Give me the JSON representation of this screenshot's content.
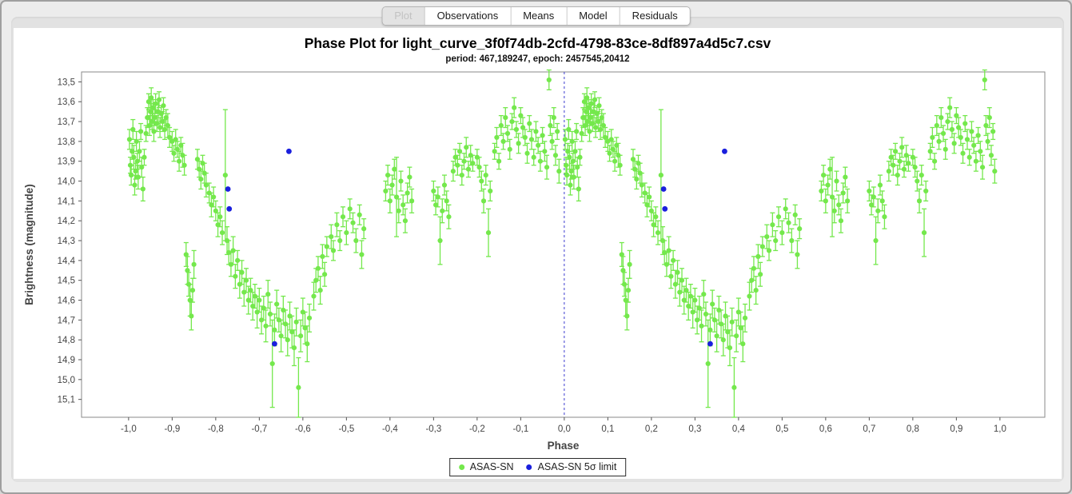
{
  "window": {
    "tabs": [
      {
        "label": "Plot",
        "state": "selected"
      },
      {
        "label": "Observations",
        "state": "normal"
      },
      {
        "label": "Means",
        "state": "normal"
      },
      {
        "label": "Model",
        "state": "normal"
      },
      {
        "label": "Residuals",
        "state": "normal"
      }
    ]
  },
  "chart_data": {
    "type": "scatter",
    "title": "Phase Plot for light_curve_3f0f74db-2cfd-4798-83ce-8df897a4d5c7.csv",
    "subtitle": "period: 467,189247, epoch: 2457545,20412",
    "xlabel": "Phase",
    "ylabel": "Brightness (magnitude)",
    "xlim": [
      -1.108,
      1.103
    ],
    "ylim": [
      13.45,
      15.19
    ],
    "y_axis_inverted": true,
    "grid": false,
    "legend_position": "bottom",
    "zero_line": {
      "x": 0,
      "style": "dashed",
      "color": "#3b3bcf"
    },
    "phase_duplication_offset": -1,
    "x_tick_values": [
      -1.0,
      -0.9,
      -0.8,
      -0.7,
      -0.6,
      -0.5,
      -0.4,
      -0.3,
      -0.2,
      -0.1,
      0.0,
      0.1,
      0.2,
      0.3,
      0.4,
      0.5,
      0.6,
      0.7,
      0.8,
      0.9,
      1.0
    ],
    "x_tick_labels": [
      "-1,0",
      "-0,9",
      "-0,8",
      "-0,7",
      "-0,6",
      "-0,5",
      "-0,4",
      "-0,3",
      "-0,2",
      "-0,1",
      "0,0",
      "0,1",
      "0,2",
      "0,3",
      "0,4",
      "0,5",
      "0,6",
      "0,7",
      "0,8",
      "0,9",
      "1,0"
    ],
    "y_tick_values": [
      13.5,
      13.6,
      13.7,
      13.8,
      13.9,
      14.0,
      14.1,
      14.2,
      14.3,
      14.4,
      14.5,
      14.6,
      14.7,
      14.8,
      14.9,
      15.0,
      15.1
    ],
    "y_tick_labels": [
      "13,5",
      "13,6",
      "13,7",
      "13,8",
      "13,9",
      "14,0",
      "14,1",
      "14,2",
      "14,3",
      "14,4",
      "14,5",
      "14,6",
      "14,7",
      "14,8",
      "14,9",
      "15,0",
      "15,1"
    ],
    "series": [
      {
        "name": "ASAS-SN",
        "marker": "circle",
        "color": "#74e84c",
        "has_error_bars": true,
        "points_format": [
          "phase",
          "magnitude",
          "error"
        ],
        "points": [
          [
            0.002,
            13.79,
            0.05
          ],
          [
            0.004,
            13.92,
            0.04
          ],
          [
            0.006,
            13.97,
            0.05
          ],
          [
            0.008,
            13.85,
            0.04
          ],
          [
            0.01,
            13.74,
            0.05
          ],
          [
            0.012,
            13.88,
            0.06
          ],
          [
            0.014,
            14.02,
            0.05
          ],
          [
            0.016,
            13.95,
            0.04
          ],
          [
            0.018,
            13.8,
            0.05
          ],
          [
            0.02,
            13.9,
            0.04
          ],
          [
            0.022,
            13.98,
            0.06
          ],
          [
            0.025,
            13.85,
            0.05
          ],
          [
            0.028,
            13.75,
            0.04
          ],
          [
            0.03,
            13.93,
            0.05
          ],
          [
            0.033,
            14.04,
            0.06
          ],
          [
            0.036,
            13.88,
            0.04
          ],
          [
            0.04,
            13.76,
            0.04
          ],
          [
            0.043,
            13.68,
            0.05
          ],
          [
            0.046,
            13.6,
            0.04
          ],
          [
            0.048,
            13.72,
            0.05
          ],
          [
            0.05,
            13.65,
            0.04
          ],
          [
            0.052,
            13.58,
            0.05
          ],
          [
            0.054,
            13.7,
            0.04
          ],
          [
            0.056,
            13.63,
            0.04
          ],
          [
            0.058,
            13.75,
            0.05
          ],
          [
            0.06,
            13.68,
            0.04
          ],
          [
            0.062,
            13.61,
            0.05
          ],
          [
            0.065,
            13.71,
            0.04
          ],
          [
            0.068,
            13.65,
            0.06
          ],
          [
            0.07,
            13.59,
            0.04
          ],
          [
            0.072,
            13.73,
            0.05
          ],
          [
            0.075,
            13.66,
            0.04
          ],
          [
            0.078,
            13.7,
            0.05
          ],
          [
            0.08,
            13.62,
            0.04
          ],
          [
            0.083,
            13.74,
            0.05
          ],
          [
            0.086,
            13.68,
            0.04
          ],
          [
            0.09,
            13.72,
            0.06
          ],
          [
            0.094,
            13.78,
            0.05
          ],
          [
            0.1,
            13.8,
            0.05
          ],
          [
            0.104,
            13.86,
            0.04
          ],
          [
            0.108,
            13.79,
            0.05
          ],
          [
            0.112,
            13.84,
            0.04
          ],
          [
            0.116,
            13.9,
            0.05
          ],
          [
            0.12,
            13.82,
            0.04
          ],
          [
            0.124,
            13.87,
            0.06
          ],
          [
            0.128,
            13.92,
            0.05
          ],
          [
            0.132,
            14.37,
            0.06
          ],
          [
            0.135,
            14.45,
            0.07
          ],
          [
            0.138,
            14.52,
            0.06
          ],
          [
            0.141,
            14.6,
            0.08
          ],
          [
            0.144,
            14.68,
            0.07
          ],
          [
            0.147,
            14.55,
            0.06
          ],
          [
            0.15,
            14.42,
            0.07
          ],
          [
            0.158,
            13.89,
            0.05
          ],
          [
            0.162,
            13.94,
            0.04
          ],
          [
            0.166,
            13.99,
            0.05
          ],
          [
            0.17,
            13.91,
            0.04
          ],
          [
            0.174,
            13.96,
            0.05
          ],
          [
            0.178,
            14.02,
            0.06
          ],
          [
            0.185,
            14.06,
            0.05
          ],
          [
            0.19,
            14.12,
            0.06
          ],
          [
            0.195,
            14.08,
            0.05
          ],
          [
            0.2,
            14.15,
            0.05
          ],
          [
            0.205,
            14.22,
            0.06
          ],
          [
            0.21,
            14.18,
            0.05
          ],
          [
            0.215,
            14.26,
            0.06
          ],
          [
            0.222,
            13.97,
            0.33
          ],
          [
            0.226,
            14.3,
            0.07
          ],
          [
            0.23,
            14.36,
            0.06
          ],
          [
            0.235,
            14.42,
            0.06
          ],
          [
            0.24,
            14.35,
            0.07
          ],
          [
            0.245,
            14.48,
            0.06
          ],
          [
            0.25,
            14.4,
            0.05
          ],
          [
            0.255,
            14.52,
            0.07
          ],
          [
            0.26,
            14.46,
            0.06
          ],
          [
            0.265,
            14.56,
            0.07
          ],
          [
            0.27,
            14.5,
            0.06
          ],
          [
            0.275,
            14.6,
            0.07
          ],
          [
            0.28,
            14.55,
            0.06
          ],
          [
            0.285,
            14.63,
            0.07
          ],
          [
            0.29,
            14.58,
            0.06
          ],
          [
            0.295,
            14.66,
            0.08
          ],
          [
            0.3,
            14.6,
            0.06
          ],
          [
            0.305,
            14.7,
            0.07
          ],
          [
            0.31,
            14.64,
            0.06
          ],
          [
            0.315,
            14.73,
            0.08
          ],
          [
            0.32,
            14.57,
            0.07
          ],
          [
            0.325,
            14.67,
            0.06
          ],
          [
            0.33,
            14.92,
            0.22
          ],
          [
            0.335,
            14.75,
            0.08
          ],
          [
            0.34,
            14.62,
            0.07
          ],
          [
            0.345,
            14.7,
            0.06
          ],
          [
            0.35,
            14.78,
            0.08
          ],
          [
            0.355,
            14.65,
            0.07
          ],
          [
            0.36,
            14.72,
            0.07
          ],
          [
            0.365,
            14.8,
            0.08
          ],
          [
            0.37,
            14.68,
            0.07
          ],
          [
            0.375,
            14.76,
            0.08
          ],
          [
            0.38,
            14.84,
            0.09
          ],
          [
            0.385,
            14.71,
            0.07
          ],
          [
            0.39,
            15.04,
            0.15
          ],
          [
            0.395,
            14.78,
            0.08
          ],
          [
            0.4,
            14.66,
            0.07
          ],
          [
            0.405,
            14.74,
            0.08
          ],
          [
            0.41,
            14.82,
            0.09
          ],
          [
            0.415,
            14.69,
            0.07
          ],
          [
            0.425,
            14.58,
            0.07
          ],
          [
            0.43,
            14.5,
            0.06
          ],
          [
            0.435,
            14.44,
            0.06
          ],
          [
            0.44,
            14.55,
            0.07
          ],
          [
            0.445,
            14.38,
            0.06
          ],
          [
            0.45,
            14.47,
            0.06
          ],
          [
            0.455,
            14.33,
            0.05
          ],
          [
            0.465,
            14.28,
            0.06
          ],
          [
            0.47,
            14.35,
            0.05
          ],
          [
            0.478,
            14.22,
            0.06
          ],
          [
            0.485,
            14.3,
            0.05
          ],
          [
            0.492,
            14.18,
            0.05
          ],
          [
            0.5,
            14.26,
            0.06
          ],
          [
            0.508,
            14.14,
            0.05
          ],
          [
            0.515,
            14.21,
            0.05
          ],
          [
            0.522,
            14.3,
            0.06
          ],
          [
            0.53,
            14.17,
            0.05
          ],
          [
            0.535,
            14.37,
            0.07
          ],
          [
            0.54,
            14.24,
            0.05
          ],
          [
            0.59,
            14.05,
            0.05
          ],
          [
            0.595,
            13.97,
            0.05
          ],
          [
            0.6,
            14.1,
            0.06
          ],
          [
            0.605,
            14.02,
            0.05
          ],
          [
            0.61,
            13.94,
            0.05
          ],
          [
            0.615,
            14.08,
            0.2
          ],
          [
            0.62,
            14.15,
            0.06
          ],
          [
            0.625,
            14.0,
            0.05
          ],
          [
            0.63,
            14.12,
            0.05
          ],
          [
            0.635,
            14.2,
            0.06
          ],
          [
            0.64,
            14.06,
            0.05
          ],
          [
            0.645,
            13.98,
            0.05
          ],
          [
            0.65,
            14.1,
            0.06
          ],
          [
            0.7,
            14.05,
            0.05
          ],
          [
            0.705,
            14.12,
            0.05
          ],
          [
            0.71,
            14.08,
            0.05
          ],
          [
            0.715,
            14.3,
            0.12
          ],
          [
            0.72,
            14.15,
            0.06
          ],
          [
            0.725,
            14.02,
            0.05
          ],
          [
            0.73,
            14.1,
            0.05
          ],
          [
            0.735,
            14.18,
            0.06
          ],
          [
            0.745,
            13.95,
            0.05
          ],
          [
            0.75,
            13.88,
            0.04
          ],
          [
            0.755,
            13.92,
            0.05
          ],
          [
            0.76,
            13.85,
            0.04
          ],
          [
            0.765,
            13.97,
            0.05
          ],
          [
            0.77,
            13.9,
            0.04
          ],
          [
            0.775,
            13.83,
            0.05
          ],
          [
            0.78,
            13.94,
            0.04
          ],
          [
            0.785,
            13.87,
            0.05
          ],
          [
            0.79,
            13.91,
            0.04
          ],
          [
            0.8,
            13.88,
            0.04
          ],
          [
            0.805,
            13.93,
            0.05
          ],
          [
            0.81,
            14.0,
            0.05
          ],
          [
            0.815,
            14.1,
            0.06
          ],
          [
            0.82,
            13.97,
            0.05
          ],
          [
            0.826,
            14.26,
            0.12
          ],
          [
            0.83,
            14.05,
            0.05
          ],
          [
            0.84,
            13.85,
            0.04
          ],
          [
            0.845,
            13.78,
            0.05
          ],
          [
            0.85,
            13.9,
            0.04
          ],
          [
            0.855,
            13.72,
            0.05
          ],
          [
            0.86,
            13.8,
            0.04
          ],
          [
            0.865,
            13.68,
            0.05
          ],
          [
            0.87,
            13.76,
            0.04
          ],
          [
            0.875,
            13.84,
            0.05
          ],
          [
            0.88,
            13.7,
            0.04
          ],
          [
            0.885,
            13.63,
            0.05
          ],
          [
            0.89,
            13.74,
            0.04
          ],
          [
            0.895,
            13.81,
            0.05
          ],
          [
            0.9,
            13.67,
            0.04
          ],
          [
            0.905,
            13.73,
            0.05
          ],
          [
            0.91,
            13.78,
            0.04
          ],
          [
            0.915,
            13.86,
            0.05
          ],
          [
            0.92,
            13.71,
            0.04
          ],
          [
            0.925,
            13.79,
            0.05
          ],
          [
            0.93,
            13.88,
            0.04
          ],
          [
            0.935,
            13.75,
            0.05
          ],
          [
            0.94,
            13.82,
            0.04
          ],
          [
            0.945,
            13.9,
            0.05
          ],
          [
            0.95,
            13.77,
            0.04
          ],
          [
            0.955,
            13.85,
            0.05
          ],
          [
            0.96,
            13.93,
            0.06
          ],
          [
            0.965,
            13.49,
            0.05
          ],
          [
            0.968,
            13.72,
            0.05
          ],
          [
            0.972,
            13.8,
            0.04
          ],
          [
            0.976,
            13.68,
            0.05
          ],
          [
            0.98,
            13.87,
            0.05
          ],
          [
            0.984,
            13.75,
            0.04
          ],
          [
            0.988,
            13.95,
            0.06
          ]
        ]
      },
      {
        "name": "ASAS-SN 5σ limit",
        "marker": "circle",
        "color": "#1a1fdd",
        "has_error_bars": false,
        "points_format": [
          "phase",
          "magnitude"
        ],
        "points": [
          [
            0.228,
            14.04
          ],
          [
            0.231,
            14.14
          ],
          [
            0.335,
            14.82
          ],
          [
            0.368,
            13.85
          ]
        ]
      }
    ]
  }
}
